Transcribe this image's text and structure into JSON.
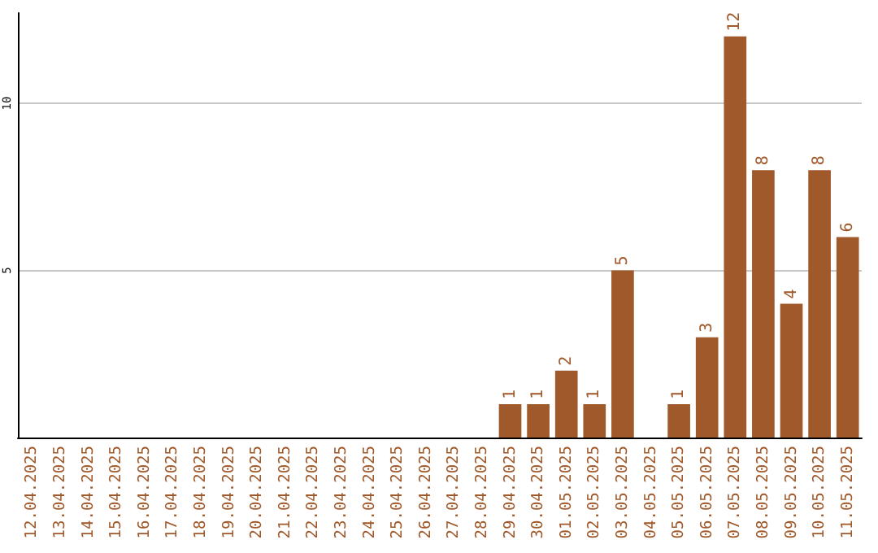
{
  "chart_data": {
    "type": "bar",
    "categories": [
      "12.04.2025",
      "13.04.2025",
      "14.04.2025",
      "15.04.2025",
      "16.04.2025",
      "17.04.2025",
      "18.04.2025",
      "19.04.2025",
      "20.04.2025",
      "21.04.2025",
      "22.04.2025",
      "23.04.2025",
      "24.04.2025",
      "25.04.2025",
      "26.04.2025",
      "27.04.2025",
      "28.04.2025",
      "29.04.2025",
      "30.04.2025",
      "01.05.2025",
      "02.05.2025",
      "03.05.2025",
      "04.05.2025",
      "05.05.2025",
      "06.05.2025",
      "07.05.2025",
      "08.05.2025",
      "09.05.2025",
      "10.05.2025",
      "11.05.2025"
    ],
    "values": [
      0,
      0,
      0,
      0,
      0,
      0,
      0,
      0,
      0,
      0,
      0,
      0,
      0,
      0,
      0,
      0,
      0,
      1,
      1,
      2,
      1,
      5,
      0,
      1,
      3,
      12,
      8,
      4,
      8,
      6
    ],
    "value_labels": [
      null,
      null,
      null,
      null,
      null,
      null,
      null,
      null,
      null,
      null,
      null,
      null,
      null,
      null,
      null,
      null,
      null,
      "1",
      "1",
      "2",
      "1",
      "5",
      null,
      "1",
      "3",
      "12",
      "8",
      "4",
      "8",
      "6"
    ],
    "color": "#a0592a",
    "ylim": [
      0,
      12.7
    ],
    "yticks": [
      5,
      10
    ],
    "grid": "y"
  }
}
